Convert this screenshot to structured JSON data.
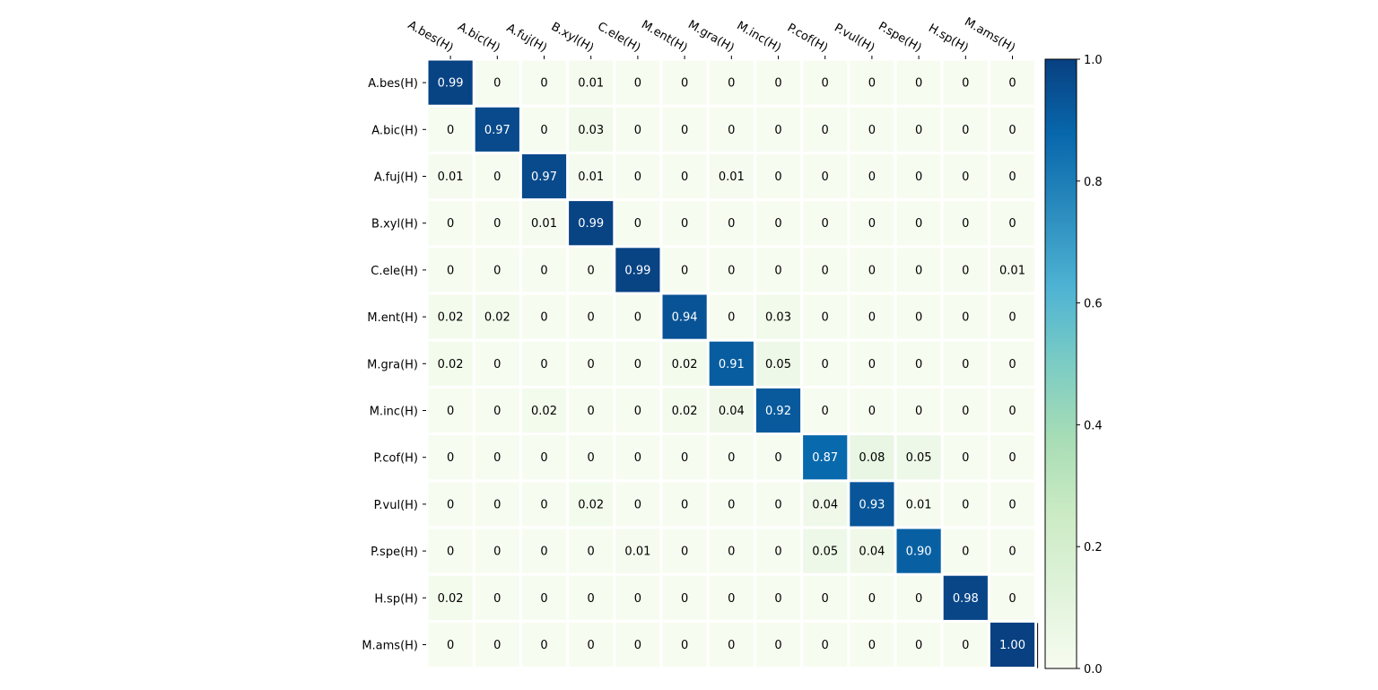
{
  "chart_data": {
    "type": "heatmap",
    "title": "",
    "xlabel": "",
    "ylabel": "",
    "x_labels": [
      "A.bes(H)",
      "A.bic(H)",
      "A.fuj(H)",
      "B.xyl(H)",
      "C.ele(H)",
      "M.ent(H)",
      "M.gra(H)",
      "M.inc(H)",
      "P.cof(H)",
      "P.vul(H)",
      "P.spe(H)",
      "H.sp(H)",
      "M.ams(H)"
    ],
    "y_labels": [
      "A.bes(H)",
      "A.bic(H)",
      "A.fuj(H)",
      "B.xyl(H)",
      "C.ele(H)",
      "M.ent(H)",
      "M.gra(H)",
      "M.inc(H)",
      "P.cof(H)",
      "P.vul(H)",
      "P.spe(H)",
      "H.sp(H)",
      "M.ams(H)"
    ],
    "x_axis_position": "top",
    "values": [
      [
        0.99,
        0,
        0,
        0.01,
        0,
        0,
        0,
        0,
        0,
        0,
        0,
        0,
        0
      ],
      [
        0,
        0.97,
        0,
        0.03,
        0,
        0,
        0,
        0,
        0,
        0,
        0,
        0,
        0
      ],
      [
        0.01,
        0,
        0.97,
        0.01,
        0,
        0,
        0.01,
        0,
        0,
        0,
        0,
        0,
        0
      ],
      [
        0,
        0,
        0.01,
        0.99,
        0,
        0,
        0,
        0,
        0,
        0,
        0,
        0,
        0
      ],
      [
        0,
        0,
        0,
        0,
        0.99,
        0,
        0,
        0,
        0,
        0,
        0,
        0,
        0.01
      ],
      [
        0.02,
        0.02,
        0,
        0,
        0,
        0.94,
        0,
        0.03,
        0,
        0,
        0,
        0,
        0
      ],
      [
        0.02,
        0,
        0,
        0,
        0,
        0.02,
        0.91,
        0.05,
        0,
        0,
        0,
        0,
        0
      ],
      [
        0,
        0,
        0.02,
        0,
        0,
        0.02,
        0.04,
        0.92,
        0,
        0,
        0,
        0,
        0
      ],
      [
        0,
        0,
        0,
        0,
        0,
        0,
        0,
        0,
        0.87,
        0.08,
        0.05,
        0,
        0
      ],
      [
        0,
        0,
        0,
        0.02,
        0,
        0,
        0,
        0,
        0.04,
        0.93,
        0.01,
        0,
        0
      ],
      [
        0,
        0,
        0,
        0,
        0.01,
        0,
        0,
        0,
        0.05,
        0.04,
        0.9,
        0,
        0
      ],
      [
        0.02,
        0,
        0,
        0,
        0,
        0,
        0,
        0,
        0,
        0,
        0,
        0.98,
        0
      ],
      [
        0,
        0,
        0,
        0,
        0,
        0,
        0,
        0,
        0,
        0,
        0,
        0,
        1.0
      ]
    ],
    "cell_labels": [
      [
        "0.99",
        "0",
        "0",
        "0.01",
        "0",
        "0",
        "0",
        "0",
        "0",
        "0",
        "0",
        "0",
        "0"
      ],
      [
        "0",
        "0.97",
        "0",
        "0.03",
        "0",
        "0",
        "0",
        "0",
        "0",
        "0",
        "0",
        "0",
        "0"
      ],
      [
        "0.01",
        "0",
        "0.97",
        "0.01",
        "0",
        "0",
        "0.01",
        "0",
        "0",
        "0",
        "0",
        "0",
        "0"
      ],
      [
        "0",
        "0",
        "0.01",
        "0.99",
        "0",
        "0",
        "0",
        "0",
        "0",
        "0",
        "0",
        "0",
        "0"
      ],
      [
        "0",
        "0",
        "0",
        "0",
        "0.99",
        "0",
        "0",
        "0",
        "0",
        "0",
        "0",
        "0",
        "0.01"
      ],
      [
        "0.02",
        "0.02",
        "0",
        "0",
        "0",
        "0.94",
        "0",
        "0.03",
        "0",
        "0",
        "0",
        "0",
        "0"
      ],
      [
        "0.02",
        "0",
        "0",
        "0",
        "0",
        "0.02",
        "0.91",
        "0.05",
        "0",
        "0",
        "0",
        "0",
        "0"
      ],
      [
        "0",
        "0",
        "0.02",
        "0",
        "0",
        "0.02",
        "0.04",
        "0.92",
        "0",
        "0",
        "0",
        "0",
        "0"
      ],
      [
        "0",
        "0",
        "0",
        "0",
        "0",
        "0",
        "0",
        "0",
        "0.87",
        "0.08",
        "0.05",
        "0",
        "0"
      ],
      [
        "0",
        "0",
        "0",
        "0.02",
        "0",
        "0",
        "0",
        "0",
        "0.04",
        "0.93",
        "0.01",
        "0",
        "0"
      ],
      [
        "0",
        "0",
        "0",
        "0",
        "0.01",
        "0",
        "0",
        "0",
        "0.05",
        "0.04",
        "0.90",
        "0",
        "0"
      ],
      [
        "0.02",
        "0",
        "0",
        "0",
        "0",
        "0",
        "0",
        "0",
        "0",
        "0",
        "0",
        "0.98",
        "0"
      ],
      [
        "0",
        "0",
        "0",
        "0",
        "0",
        "0",
        "0",
        "0",
        "0",
        "0",
        "0",
        "0",
        "1.00"
      ]
    ],
    "colormap": {
      "name": "GnBu",
      "stops": [
        "#f7fcf0",
        "#e0f3db",
        "#ccebc5",
        "#a8ddb5",
        "#7bccc4",
        "#4eb3d3",
        "#2b8cbe",
        "#0868ac",
        "#084081"
      ]
    },
    "colorbar": {
      "range": [
        0.0,
        1.0
      ],
      "ticks": [
        "0.0",
        "0.2",
        "0.4",
        "0.6",
        "0.8",
        "1.0"
      ],
      "position": "right"
    },
    "grid": false
  }
}
